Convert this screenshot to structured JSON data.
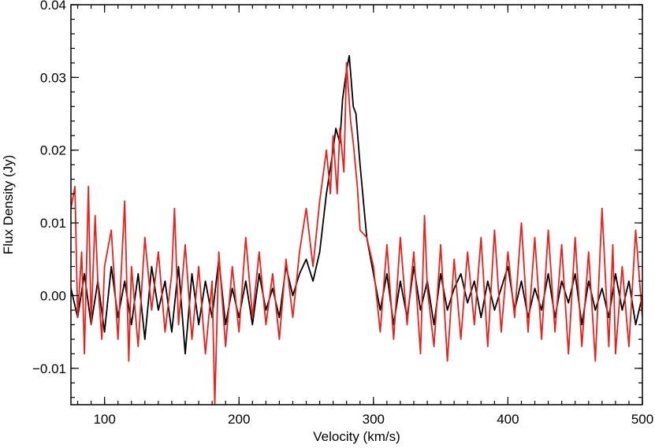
{
  "chart_data": {
    "type": "line",
    "xlabel": "Velocity (km/s)",
    "ylabel": "Flux Density (Jy)",
    "xlim": [
      75,
      500
    ],
    "ylim": [
      -0.015,
      0.04
    ],
    "x_ticks": [
      100,
      200,
      300,
      400,
      500
    ],
    "x_tick_labels": [
      "100",
      "200",
      "300",
      "400",
      "500"
    ],
    "y_ticks": [
      -0.01,
      0.0,
      0.01,
      0.02,
      0.03,
      0.04
    ],
    "y_tick_labels": [
      "−0.01",
      "0.00",
      "0.01",
      "0.02",
      "0.03",
      "0.04"
    ],
    "x_minor_step": 10,
    "y_minor_step": 0.002,
    "grid": false,
    "series": [
      {
        "color": "#000000",
        "x": [
          75,
          80,
          85,
          90,
          95,
          100,
          105,
          110,
          115,
          120,
          125,
          130,
          135,
          140,
          145,
          150,
          155,
          160,
          165,
          170,
          175,
          180,
          185,
          190,
          195,
          200,
          205,
          210,
          215,
          220,
          225,
          230,
          235,
          240,
          245,
          250,
          255,
          260,
          265,
          270,
          272,
          275,
          277,
          280,
          282,
          285,
          287,
          290,
          295,
          300,
          305,
          310,
          315,
          320,
          325,
          330,
          335,
          340,
          345,
          350,
          355,
          360,
          365,
          370,
          375,
          380,
          385,
          390,
          395,
          400,
          405,
          410,
          415,
          420,
          425,
          430,
          435,
          440,
          445,
          450,
          455,
          460,
          465,
          470,
          475,
          480,
          485,
          490,
          495,
          500
        ],
        "values": [
          0.001,
          -0.003,
          0.003,
          -0.004,
          0.002,
          -0.005,
          0.004,
          -0.003,
          0.002,
          -0.004,
          0.003,
          -0.006,
          0.004,
          -0.002,
          0.002,
          -0.005,
          0.004,
          -0.008,
          0.003,
          -0.004,
          0.002,
          -0.003,
          0.005,
          -0.004,
          0.001,
          -0.003,
          0.002,
          -0.004,
          0.003,
          -0.002,
          0.001,
          -0.003,
          0.004,
          0.0,
          0.003,
          0.005,
          0.002,
          0.006,
          0.014,
          0.02,
          0.023,
          0.021,
          0.027,
          0.031,
          0.033,
          0.026,
          0.025,
          0.018,
          0.008,
          0.003,
          -0.002,
          0.003,
          -0.004,
          0.002,
          -0.003,
          0.004,
          -0.002,
          0.002,
          -0.004,
          0.003,
          -0.002,
          0.001,
          0.003,
          -0.001,
          0.002,
          -0.003,
          0.002,
          -0.002,
          0.001,
          0.004,
          -0.002,
          0.002,
          -0.003,
          0.001,
          -0.002,
          0.003,
          -0.003,
          0.002,
          -0.001,
          0.003,
          -0.004,
          0.002,
          -0.002,
          0.001,
          -0.003,
          0.003,
          -0.002,
          0.002,
          -0.004,
          0.0
        ]
      },
      {
        "color": "#e8211d",
        "x": [
          75,
          78,
          80,
          83,
          85,
          88,
          90,
          93,
          95,
          98,
          100,
          105,
          110,
          115,
          118,
          120,
          125,
          130,
          135,
          140,
          145,
          150,
          152,
          155,
          160,
          165,
          170,
          175,
          180,
          182,
          185,
          190,
          195,
          200,
          205,
          210,
          215,
          220,
          225,
          230,
          235,
          240,
          245,
          250,
          255,
          260,
          265,
          268,
          270,
          273,
          275,
          278,
          280,
          283,
          285,
          288,
          290,
          295,
          300,
          305,
          310,
          315,
          320,
          325,
          330,
          335,
          338,
          340,
          345,
          350,
          355,
          360,
          365,
          370,
          375,
          380,
          385,
          390,
          395,
          400,
          405,
          410,
          415,
          420,
          425,
          430,
          435,
          440,
          445,
          450,
          455,
          460,
          465,
          470,
          475,
          478,
          480,
          485,
          490,
          495,
          500
        ],
        "values": [
          0.012,
          0.015,
          -0.003,
          0.006,
          -0.008,
          0.015,
          -0.004,
          0.011,
          0.002,
          -0.006,
          0.004,
          0.009,
          -0.006,
          0.013,
          -0.009,
          0.004,
          -0.007,
          0.008,
          -0.002,
          0.006,
          -0.005,
          0.003,
          0.012,
          -0.004,
          0.007,
          -0.006,
          0.004,
          -0.008,
          0.002,
          -0.015,
          0.006,
          -0.007,
          0.004,
          -0.005,
          0.008,
          -0.003,
          0.006,
          -0.004,
          0.003,
          -0.006,
          0.005,
          -0.003,
          0.006,
          0.012,
          0.004,
          0.013,
          0.02,
          0.014,
          0.022,
          0.014,
          0.023,
          0.017,
          0.032,
          0.024,
          0.021,
          0.015,
          0.009,
          0.008,
          0.004,
          -0.005,
          0.007,
          -0.006,
          0.008,
          -0.004,
          0.006,
          -0.008,
          0.011,
          0.001,
          -0.007,
          0.007,
          -0.009,
          0.005,
          -0.006,
          0.006,
          -0.004,
          0.008,
          -0.007,
          0.009,
          -0.005,
          0.006,
          -0.003,
          0.01,
          -0.005,
          0.008,
          -0.006,
          0.009,
          -0.005,
          0.007,
          -0.008,
          0.008,
          -0.007,
          0.006,
          -0.009,
          0.012,
          -0.007,
          0.007,
          -0.008,
          0.004,
          -0.007,
          0.009,
          -0.003
        ]
      }
    ]
  }
}
